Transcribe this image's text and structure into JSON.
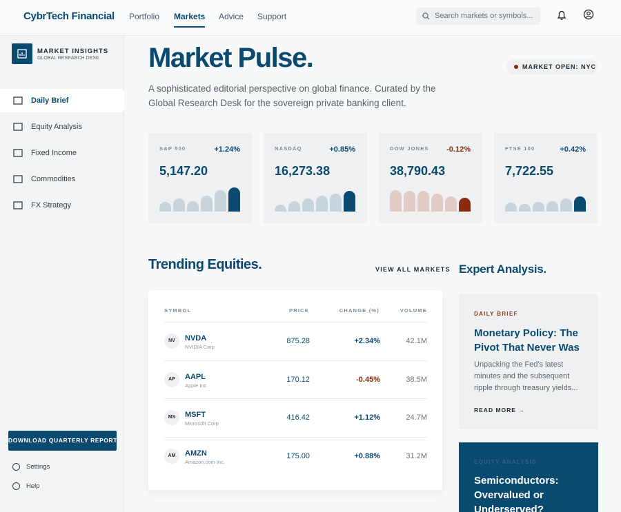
{
  "header": {
    "brand": "CybrTech Financial",
    "nav": [
      "Portfolio",
      "Markets",
      "Advice",
      "Support"
    ],
    "search_placeholder": "Search markets or symbols..."
  },
  "sidebar": {
    "title": "MARKET INSIGHTS",
    "subtitle": "GLOBAL RESEARCH DESK",
    "items": [
      "Daily Brief",
      "Equity Analysis",
      "Fixed Income",
      "Commodities",
      "FX Strategy"
    ],
    "cta": "DOWNLOAD QUARTERLY REPORT",
    "footer": [
      "Settings",
      "Help"
    ]
  },
  "hero": {
    "title": "Market Pulse.",
    "description": "A sophisticated editorial perspective on global finance. Curated by the Global Research Desk for the sovereign private banking client.",
    "status": "MARKET OPEN: NYC"
  },
  "indices": [
    {
      "name": "S&P 500",
      "change": "+1.24%",
      "value": "5,147.20",
      "bars": [
        14,
        19,
        15,
        23,
        31,
        35
      ],
      "color": "#c7d4dc",
      "accent": "#0b4a6f"
    },
    {
      "name": "NASDAQ",
      "change": "+0.85%",
      "value": "16,273.38",
      "bars": [
        10,
        15,
        19,
        23,
        26,
        30
      ],
      "color": "#c7d4dc",
      "accent": "#0b4a6f"
    },
    {
      "name": "DOW JONES",
      "change": "-0.12%",
      "value": "38,790.43",
      "bars": [
        31,
        30,
        30,
        26,
        22,
        20
      ],
      "color": "#e2cbc3",
      "accent": "#8b2a0e"
    },
    {
      "name": "FTSE 100",
      "change": "+0.42%",
      "value": "7,722.55",
      "bars": [
        13,
        11,
        14,
        15,
        19,
        22
      ],
      "color": "#c7d4dc",
      "accent": "#0b4a6f"
    }
  ],
  "trending": {
    "title": "Trending Equities.",
    "link": "VIEW ALL MARKETS",
    "columns": [
      "SYMBOL",
      "PRICE",
      "CHANGE (%)",
      "VOLUME"
    ],
    "rows": [
      {
        "badge": "NV",
        "symbol": "NVDA",
        "name": "NVIDIA Corp",
        "price": "875.28",
        "change": "+2.34%",
        "volume": "42.1M"
      },
      {
        "badge": "AP",
        "symbol": "AAPL",
        "name": "Apple Inc.",
        "price": "170.12",
        "change": "-0.45%",
        "volume": "38.5M"
      },
      {
        "badge": "MS",
        "symbol": "MSFT",
        "name": "Microsoft Corp",
        "price": "416.42",
        "change": "+1.12%",
        "volume": "24.7M"
      },
      {
        "badge": "AM",
        "symbol": "AMZN",
        "name": "Amazon.com Inc.",
        "price": "175.00",
        "change": "+0.88%",
        "volume": "31.2M"
      }
    ]
  },
  "analysis": {
    "title": "Expert Analysis.",
    "articles": [
      {
        "tag": "DAILY BRIEF",
        "title": "Monetary Policy: The Pivot That Never Was",
        "summary": "Unpacking the Fed's latest minutes and the subsequent ripple through treasury yields...",
        "link": "READ MORE"
      },
      {
        "tag": "EQUITY ANALYSIS",
        "title": "Semiconductors: Overvalued or Underserved?"
      }
    ]
  }
}
